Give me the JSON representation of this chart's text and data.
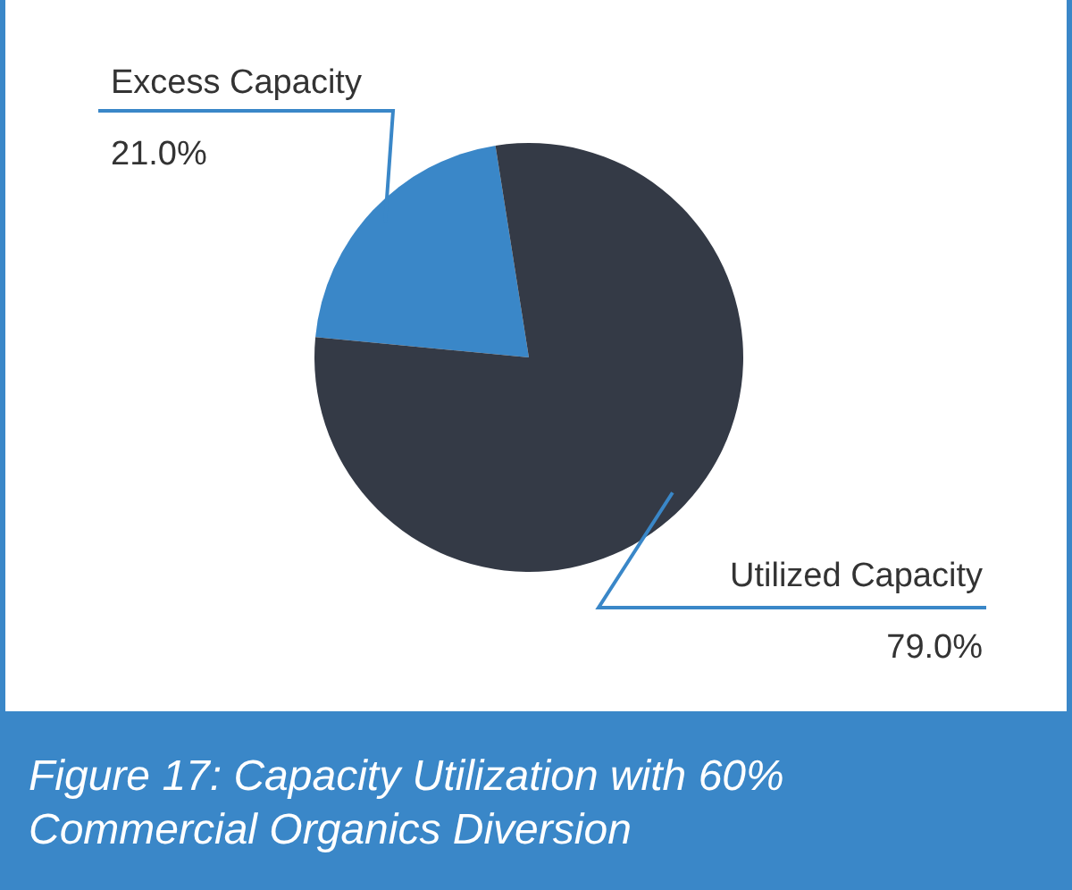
{
  "chart_data": {
    "type": "pie",
    "title": "Figure 17: Capacity Utilization with 60% Commercial Organics Diversion",
    "categories": [
      "Excess Capacity",
      "Utilized Capacity"
    ],
    "values": [
      21.0,
      79.0
    ],
    "value_labels": [
      "21.0%",
      "79.0%"
    ],
    "colors": [
      "#3a87c8",
      "#343a46"
    ]
  }
}
